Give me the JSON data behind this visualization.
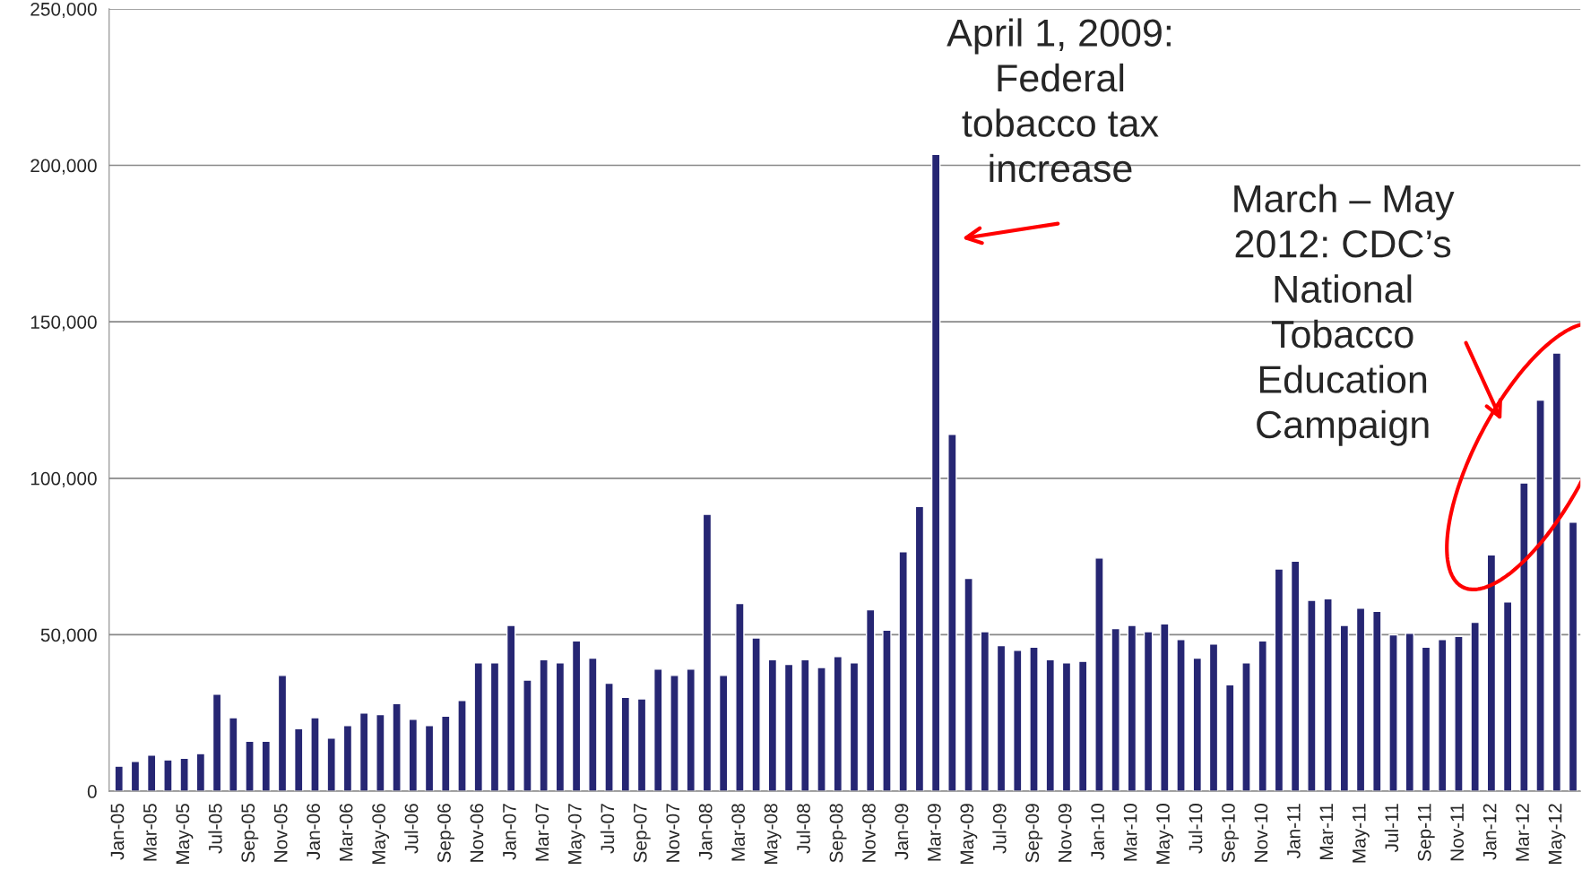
{
  "chart_data": {
    "type": "bar",
    "categories": [
      "Jan-05",
      null,
      "Mar-05",
      null,
      "May-05",
      null,
      "Jul-05",
      null,
      "Sep-05",
      null,
      "Nov-05",
      null,
      "Jan-06",
      null,
      "Mar-06",
      null,
      "May-06",
      null,
      "Jul-06",
      null,
      "Sep-06",
      null,
      "Nov-06",
      null,
      "Jan-07",
      null,
      "Mar-07",
      null,
      "May-07",
      null,
      "Jul-07",
      null,
      "Sep-07",
      null,
      "Nov-07",
      null,
      "Jan-08",
      null,
      "Mar-08",
      null,
      "May-08",
      null,
      "Jul-08",
      null,
      "Sep-08",
      null,
      "Nov-08",
      null,
      "Jan-09",
      null,
      "Mar-09",
      null,
      "May-09",
      null,
      "Jul-09",
      null,
      "Sep-09",
      null,
      "Nov-09",
      null,
      "Jan-10",
      null,
      "Mar-10",
      null,
      "May-10",
      null,
      "Jul-10",
      null,
      "Sep-10",
      null,
      "Nov-10",
      null,
      "Jan-11",
      null,
      "Mar-11",
      null,
      "May-11",
      null,
      "Jul-11",
      null,
      "Sep-11",
      null,
      "Nov-11",
      null,
      "Jan-12",
      null,
      "Mar-12",
      null,
      "May-12",
      null
    ],
    "values": [
      8000,
      9500,
      11500,
      10000,
      10500,
      12000,
      31000,
      23500,
      16000,
      16000,
      37000,
      20000,
      23500,
      17000,
      21000,
      25000,
      24500,
      28000,
      23000,
      21000,
      24000,
      29000,
      41000,
      41000,
      53000,
      35500,
      42000,
      41000,
      48000,
      42500,
      34500,
      30000,
      29500,
      39000,
      37000,
      39000,
      88500,
      37000,
      60000,
      49000,
      42000,
      40500,
      42000,
      39500,
      43000,
      41000,
      58000,
      51500,
      76500,
      91000,
      203500,
      114000,
      68000,
      51000,
      46500,
      45000,
      46000,
      42000,
      41000,
      41500,
      74500,
      52000,
      53000,
      51000,
      53500,
      48500,
      42500,
      47000,
      34000,
      41000,
      48000,
      71000,
      73500,
      61000,
      61500,
      53000,
      58500,
      57500,
      50000,
      50500,
      46000,
      48500,
      49500,
      54000,
      75500,
      60500,
      98500,
      125000,
      140000,
      86000
    ],
    "color": "#262673",
    "ylim": [
      0,
      250000
    ],
    "yticks": [
      {
        "value": 0,
        "label": "0"
      },
      {
        "value": 50000,
        "label": "50,000"
      },
      {
        "value": 100000,
        "label": "100,000"
      },
      {
        "value": 150000,
        "label": "150,000"
      },
      {
        "value": 200000,
        "label": "200,000"
      },
      {
        "value": 250000,
        "label": "250,000"
      }
    ],
    "grid": "y",
    "annotations": [
      "April 1, 2009:\nFederal\ntobacco tax\nincrease",
      "March – May\n2012: CDC’s\nNational\nTobacco\nEducation\nCampaign"
    ]
  }
}
